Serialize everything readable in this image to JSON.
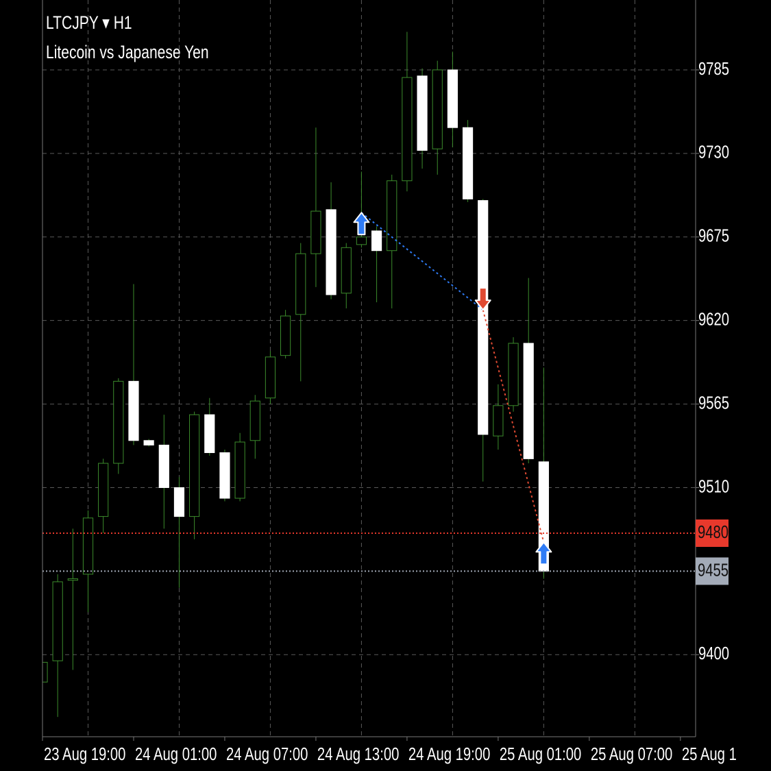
{
  "chart_data": {
    "type": "candlestick",
    "title": "LTCJPY ▾ H1",
    "subtitle": "Litecoin vs Japanese Yen",
    "open": [
      9382,
      9396,
      9449,
      9453,
      9491,
      9526,
      9580,
      9541,
      9538,
      9510,
      9491,
      9558,
      9533,
      9503,
      9541,
      9569,
      9597,
      9624,
      9664,
      9693,
      9638,
      9670,
      9679,
      9666,
      9712,
      9781,
      9733,
      9785,
      9747,
      9699,
      9544,
      9564,
      9605,
      9527
    ],
    "high": [
      9395,
      9453,
      9483,
      9495,
      9529,
      9582,
      9644,
      9542,
      9558,
      9517,
      9560,
      9569,
      9535,
      9546,
      9571,
      9600,
      9627,
      9671,
      9747,
      9711,
      9671,
      9718,
      9682,
      9716,
      9810,
      9786,
      9791,
      9797,
      9752,
      9700,
      9578,
      9609,
      9648,
      9589
    ],
    "low": [
      9382,
      9359,
      9390,
      9428,
      9480,
      9519,
      9538,
      9537,
      9483,
      9444,
      9476,
      9531,
      9501,
      9501,
      9529,
      9565,
      9595,
      9580,
      9642,
      9634,
      9628,
      9668,
      9632,
      9628,
      9705,
      9720,
      9716,
      9734,
      9698,
      9514,
      9535,
      9560,
      9526,
      9450
    ],
    "close": [
      9395,
      9448,
      9450,
      9490,
      9526,
      9580,
      9541,
      9538,
      9510,
      9491,
      9558,
      9533,
      9503,
      9540,
      9567,
      9596,
      9623,
      9664,
      9692,
      9637,
      9668,
      9675,
      9666,
      9712,
      9780,
      9732,
      9785,
      9747,
      9700,
      9545,
      9564,
      9605,
      9529,
      9455
    ],
    "up_color": "#000000",
    "down_color": "#ffffff",
    "wick_color": "#3c8c2c",
    "xlim": [
      0,
      43
    ],
    "xticks": [
      {
        "value": 0,
        "label": "23 Aug 19:00"
      },
      {
        "value": 6,
        "label": "24 Aug 01:00"
      },
      {
        "value": 12,
        "label": "24 Aug 07:00"
      },
      {
        "value": 18,
        "label": "24 Aug 13:00"
      },
      {
        "value": 24,
        "label": "24 Aug 19:00"
      },
      {
        "value": 30,
        "label": "25 Aug 01:00"
      },
      {
        "value": 36,
        "label": "25 Aug 07:00"
      },
      {
        "value": 42,
        "label": "25 Aug 1"
      }
    ],
    "ylim": [
      9346,
      9831
    ],
    "yticks": [
      9400,
      9510,
      9565,
      9620,
      9675,
      9730,
      9785
    ],
    "grid": true,
    "price_lines": [
      {
        "value": 9480,
        "color": "#e8392c"
      },
      {
        "value": 9455,
        "color": "#a3abb8"
      }
    ],
    "signals": [
      {
        "bar": 21,
        "price": 9691,
        "direction": "up",
        "color": "#2f7cf6"
      },
      {
        "bar": 29,
        "price": 9627,
        "direction": "down",
        "color": "#e04a32"
      },
      {
        "bar": 33,
        "price": 9474,
        "direction": "up",
        "color": "#2f7cf6"
      }
    ]
  }
}
